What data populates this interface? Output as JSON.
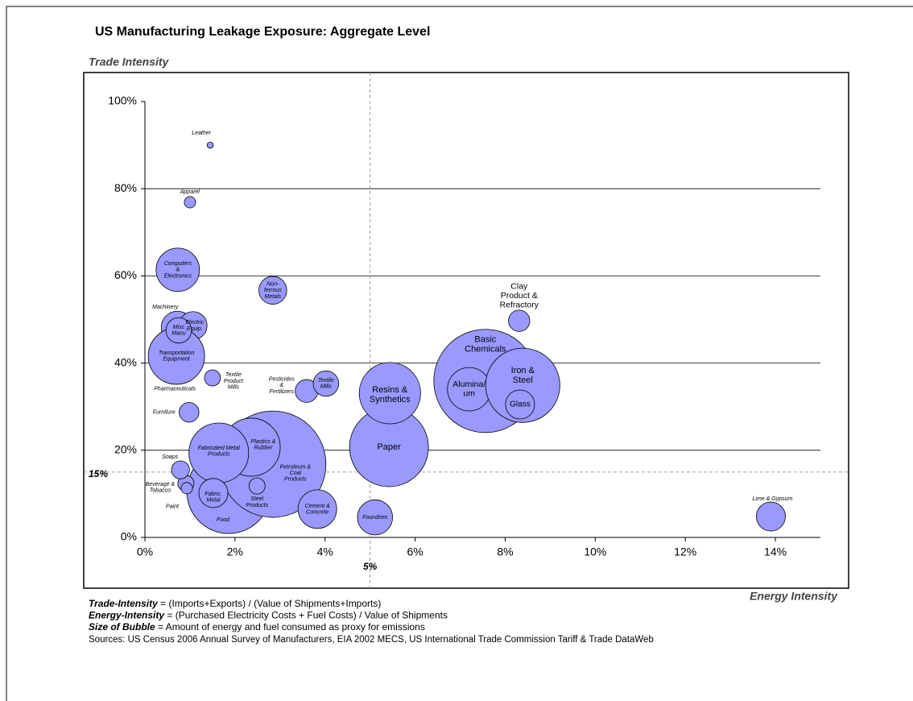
{
  "chart_data": {
    "type": "bubble",
    "title": "US Manufacturing Leakage Exposure: Aggregate Level",
    "y_label": "Trade Intensity",
    "x_label": "Energy Intensity",
    "xlim": [
      0,
      15
    ],
    "ylim": [
      0,
      100
    ],
    "xticks": [
      {
        "value": 0,
        "label": "0%"
      },
      {
        "value": 2,
        "label": "2%"
      },
      {
        "value": 4,
        "label": "4%"
      },
      {
        "value": 6,
        "label": "6%"
      },
      {
        "value": 8,
        "label": "8%"
      },
      {
        "value": 10,
        "label": "10%"
      },
      {
        "value": 12,
        "label": "12%"
      },
      {
        "value": 14,
        "label": "14%"
      }
    ],
    "yticks": [
      {
        "value": 0,
        "label": "0%"
      },
      {
        "value": 20,
        "label": "20%"
      },
      {
        "value": 40,
        "label": "40%"
      },
      {
        "value": 60,
        "label": "60%"
      },
      {
        "value": 80,
        "label": "80%"
      },
      {
        "value": 100,
        "label": "100%"
      }
    ],
    "grid": true,
    "color": "#9999ff",
    "ref_lines": {
      "x": {
        "value": 5,
        "label": "5%"
      },
      "y": {
        "value": 15,
        "label": "15%"
      }
    },
    "labels": [
      [
        "Leather"
      ],
      [
        "Apparel"
      ],
      [
        "Computers",
        "&",
        "Electronics"
      ],
      [
        "Non-",
        "ferrous",
        "Metals"
      ],
      [
        "Pharmaceuticals"
      ],
      [
        "Machinery"
      ],
      [
        "Electric",
        "Equip."
      ],
      [
        "Transportation",
        "Equipment"
      ],
      [
        "Misc",
        "Manu"
      ],
      [
        "Textile",
        "Product",
        "Mills"
      ],
      [
        "Furniture"
      ],
      [
        "Pesticides",
        "&",
        "Fertilizers"
      ],
      [
        "Textile",
        "Mills"
      ],
      [
        "Paper"
      ],
      [
        "Resins &",
        "Synthetics"
      ],
      [
        "Basic",
        "Chemicals"
      ],
      [
        "Alumina/",
        "um"
      ],
      [
        "Iron &",
        "Steel"
      ],
      [
        "Glass"
      ],
      [
        "Clay",
        "Product &",
        "Refractory"
      ],
      [
        "Food"
      ],
      [
        "Petroleum &",
        "Coal",
        "Products"
      ],
      [
        "Plastics &",
        "Rubber"
      ],
      [
        "Fabricated Metal",
        "Products"
      ],
      [
        "Fabric.",
        "Metal"
      ],
      [
        "Steel",
        "Products"
      ],
      [
        "Beverage &",
        "Tobacco"
      ],
      [
        "Soaps"
      ],
      [
        "Paint"
      ],
      [
        "Cement &",
        "Concrete"
      ],
      [
        "Foundries"
      ],
      [
        "Lime & Gypsum"
      ]
    ],
    "x": [
      1.45,
      1.0,
      0.73,
      2.84,
      0.7,
      0.72,
      1.07,
      0.7,
      0.75,
      1.5,
      0.98,
      3.59,
      4.02,
      5.42,
      5.44,
      7.56,
      7.2,
      8.39,
      8.33,
      8.31,
      1.86,
      2.84,
      2.36,
      1.64,
      1.52,
      2.49,
      0.91,
      0.79,
      0.93,
      3.83,
      5.11,
      13.9
    ],
    "values": [
      90,
      76.9,
      61.4,
      56.7,
      37,
      48.2,
      48.6,
      41.6,
      47.5,
      36.6,
      28.7,
      33.6,
      35.3,
      20.7,
      33.1,
      35.9,
      34,
      34.9,
      30.5,
      49.7,
      10.5,
      16.8,
      20.7,
      19.4,
      10.2,
      11.8,
      12.4,
      15.5,
      11.3,
      6.5,
      4.6,
      4.8
    ],
    "sizes": [
      0.6,
      2,
      29,
      12,
      4,
      16,
      12,
      49,
      10,
      4,
      6,
      8,
      10,
      96,
      58,
      164,
      29,
      85,
      13,
      7,
      108,
      174,
      52,
      55,
      13,
      4,
      4,
      5,
      2,
      23,
      19,
      13
    ],
    "footnotes": [
      {
        "term": "Trade-Intensity",
        "text": " = (Imports+Exports) / (Value of Shipments+Imports)"
      },
      {
        "term": "Energy-Intensity",
        "text": " = (Purchased Electricity Costs + Fuel Costs) / Value of Shipments"
      },
      {
        "term": "Size of Bubble",
        "text": " = Amount of energy and fuel consumed as proxy for emissions"
      }
    ],
    "sources": "Sources: US Census 2006 Annual Survey of Manufacturers, EIA 2002 MECS, US International Trade Commission Tariff & Trade DataWeb"
  }
}
